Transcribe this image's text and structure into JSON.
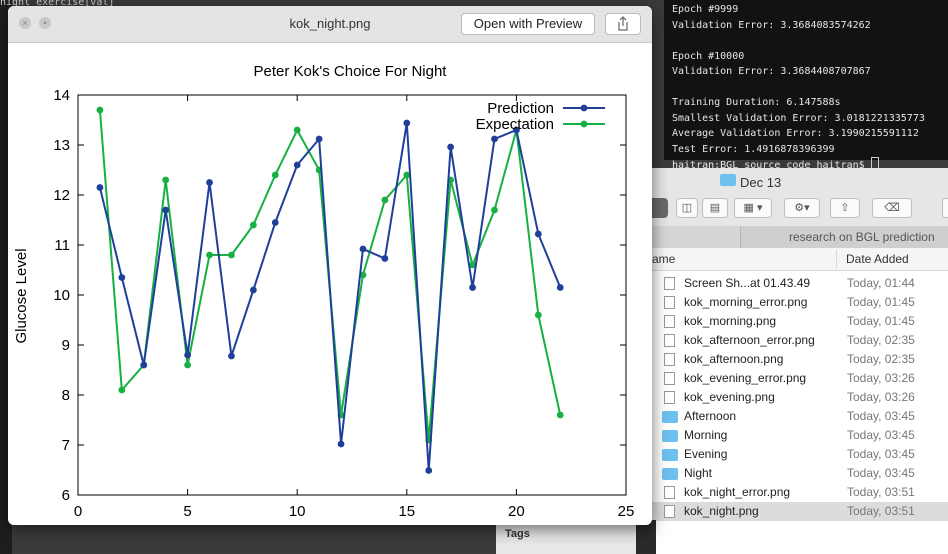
{
  "terminal_left": {
    "line1": "night_exercise[val]"
  },
  "terminal": {
    "lines": [
      "Epoch #9999",
      "Validation Error: 3.3684083574262",
      "",
      "Epoch #10000",
      "Validation Error: 3.3684408707867",
      "",
      "Training Duration: 6.147588s",
      "Smallest Validation Error: 3.0181221335773",
      "Average Validation Error: 3.1990215591112",
      "Test Error: 1.4916878396399"
    ],
    "prompt": "haitran:BGL_source_code haitran$ "
  },
  "finder": {
    "title": "Dec 13",
    "path_segment": "research on BGL prediction",
    "col_name": "ame",
    "col_date": "Date Added",
    "tags_label": "Tags",
    "files": [
      {
        "name": "Screen Sh...at 01.43.49",
        "date": "Today, 01:44",
        "kind": "file"
      },
      {
        "name": "kok_morning_error.png",
        "date": "Today, 01:45",
        "kind": "file"
      },
      {
        "name": "kok_morning.png",
        "date": "Today, 01:45",
        "kind": "file"
      },
      {
        "name": "kok_afternoon_error.png",
        "date": "Today, 02:35",
        "kind": "file"
      },
      {
        "name": "kok_afternoon.png",
        "date": "Today, 02:35",
        "kind": "file"
      },
      {
        "name": "kok_evening_error.png",
        "date": "Today, 03:26",
        "kind": "file"
      },
      {
        "name": "kok_evening.png",
        "date": "Today, 03:26",
        "kind": "file"
      },
      {
        "name": "Afternoon",
        "date": "Today, 03:45",
        "kind": "folder"
      },
      {
        "name": "Morning",
        "date": "Today, 03:45",
        "kind": "folder"
      },
      {
        "name": "Evening",
        "date": "Today, 03:45",
        "kind": "folder"
      },
      {
        "name": "Night",
        "date": "Today, 03:45",
        "kind": "folder"
      },
      {
        "name": "kok_night_error.png",
        "date": "Today, 03:51",
        "kind": "file"
      },
      {
        "name": "kok_night.png",
        "date": "Today, 03:51",
        "kind": "file",
        "selected": true
      }
    ]
  },
  "preview": {
    "title": "kok_night.png",
    "open_button": "Open with Preview"
  },
  "chart_data": {
    "type": "line",
    "title": "Peter Kok's Choice For Night",
    "xlabel": "",
    "ylabel": "Glucose Level",
    "xlim": [
      0,
      25
    ],
    "ylim": [
      6,
      14
    ],
    "xticks": [
      0,
      5,
      10,
      15,
      20,
      25
    ],
    "yticks": [
      6,
      7,
      8,
      9,
      10,
      11,
      12,
      13,
      14
    ],
    "grid": false,
    "legend_position": "top-right",
    "x": [
      1,
      2,
      3,
      4,
      5,
      6,
      7,
      8,
      9,
      10,
      11,
      12,
      13,
      14,
      15,
      16,
      17,
      18,
      19,
      20,
      21,
      22
    ],
    "series": [
      {
        "name": "Prediction",
        "color": "#1f3f9a",
        "values": [
          12.15,
          10.35,
          8.6,
          11.7,
          8.8,
          12.25,
          8.78,
          10.1,
          11.45,
          12.6,
          13.12,
          7.02,
          10.92,
          10.73,
          13.44,
          6.49,
          12.96,
          10.15,
          13.12,
          13.3,
          11.22,
          10.15
        ]
      },
      {
        "name": "Expectation",
        "color": "#16b043",
        "values": [
          13.7,
          8.1,
          8.6,
          12.3,
          8.6,
          10.8,
          10.8,
          11.4,
          12.4,
          13.3,
          12.5,
          7.6,
          10.4,
          11.9,
          12.4,
          7.1,
          12.3,
          10.6,
          11.7,
          13.3,
          9.6,
          7.6
        ]
      }
    ]
  }
}
